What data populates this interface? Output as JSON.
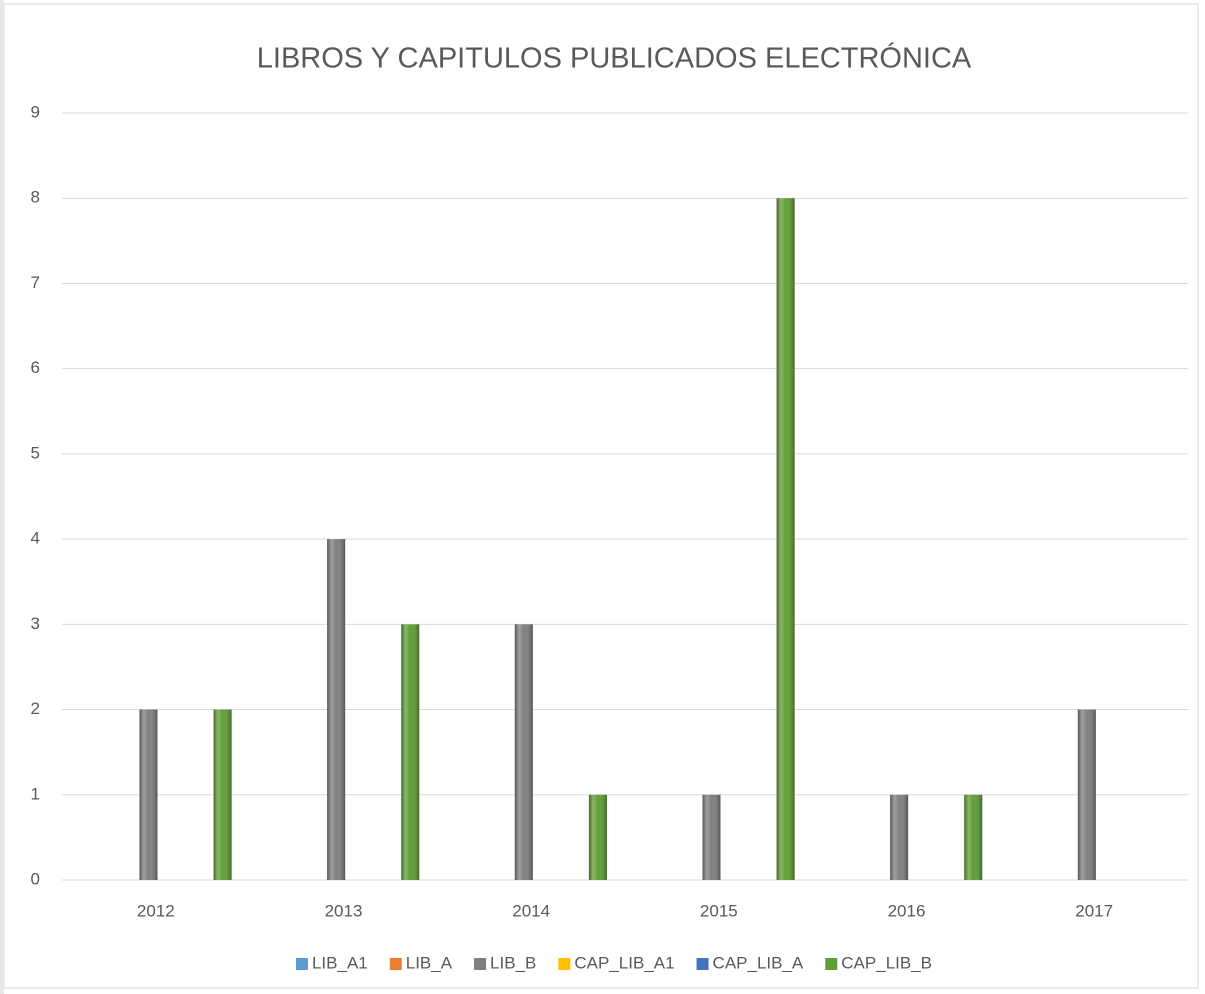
{
  "chart_data": {
    "type": "bar",
    "title": "LIBROS Y CAPITULOS PUBLICADOS ELECTRÓNICA",
    "categories": [
      "2012",
      "2013",
      "2014",
      "2015",
      "2016",
      "2017"
    ],
    "series": [
      {
        "name": "LIB_A1",
        "color": "#5b9bd5",
        "values": [
          0,
          0,
          0,
          0,
          0,
          0
        ]
      },
      {
        "name": "LIB_A",
        "color": "#ed7d31",
        "values": [
          0,
          0,
          0,
          0,
          0,
          0
        ]
      },
      {
        "name": "LIB_B",
        "color": "#7f7f7f",
        "values": [
          2,
          4,
          3,
          1,
          1,
          2
        ]
      },
      {
        "name": "CAP_LIB_A1",
        "color": "#ffc000",
        "values": [
          0,
          0,
          0,
          0,
          0,
          0
        ]
      },
      {
        "name": "CAP_LIB_A",
        "color": "#4472c4",
        "values": [
          0,
          0,
          0,
          0,
          0,
          0
        ]
      },
      {
        "name": "CAP_LIB_B",
        "color": "#5f9e35",
        "values": [
          2,
          3,
          1,
          8,
          1,
          0
        ]
      }
    ],
    "ylim": [
      0,
      9
    ],
    "yticks": [
      0,
      1,
      2,
      3,
      4,
      5,
      6,
      7,
      8,
      9
    ],
    "grid": true,
    "legend": "bottom"
  }
}
